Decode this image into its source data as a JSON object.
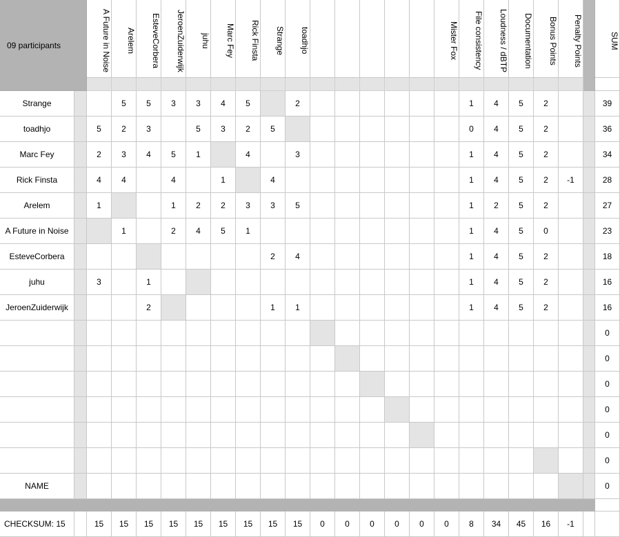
{
  "header": {
    "participants_label": "09 participants",
    "columns": [
      "A Future in Noise",
      "Arelem",
      "EsteveCorbera",
      "JeroenZuiderwijk",
      "juhu",
      "Marc Fey",
      "Rick Finsta",
      "Strange",
      "toadhjo",
      "",
      "",
      "",
      "",
      "",
      "Mister Fox",
      "File consistency",
      "Loudness / dBTP",
      "Documentation",
      "Bonus Points",
      "Penalty Points"
    ],
    "sum_label": "SUM"
  },
  "rows": [
    {
      "name": "Strange",
      "cells": [
        "",
        "5",
        "5",
        "3",
        "3",
        "4",
        "5",
        "",
        "2",
        "",
        "",
        "",
        "",
        "",
        "",
        "1",
        "4",
        "5",
        "2",
        ""
      ],
      "sum": "39",
      "diag": 7
    },
    {
      "name": "toadhjo",
      "cells": [
        "5",
        "2",
        "3",
        "",
        "5",
        "3",
        "2",
        "5",
        "",
        "",
        "",
        "",
        "",
        "",
        "",
        "0",
        "4",
        "5",
        "2",
        ""
      ],
      "sum": "36",
      "diag": 8
    },
    {
      "name": "Marc Fey",
      "cells": [
        "2",
        "3",
        "4",
        "5",
        "1",
        "",
        "4",
        "",
        "3",
        "",
        "",
        "",
        "",
        "",
        "",
        "1",
        "4",
        "5",
        "2",
        ""
      ],
      "sum": "34",
      "diag": 5
    },
    {
      "name": "Rick Finsta",
      "cells": [
        "4",
        "4",
        "",
        "4",
        "",
        "1",
        "",
        "4",
        "",
        "",
        "",
        "",
        "",
        "",
        "",
        "1",
        "4",
        "5",
        "2",
        "-1"
      ],
      "sum": "28",
      "diag": 6
    },
    {
      "name": "Arelem",
      "cells": [
        "1",
        "",
        "",
        "1",
        "2",
        "2",
        "3",
        "3",
        "5",
        "",
        "",
        "",
        "",
        "",
        "",
        "1",
        "2",
        "5",
        "2",
        ""
      ],
      "sum": "27",
      "diag": 1
    },
    {
      "name": "A Future in Noise",
      "cells": [
        "",
        "1",
        "",
        "2",
        "4",
        "5",
        "1",
        "",
        "",
        "",
        "",
        "",
        "",
        "",
        "",
        "1",
        "4",
        "5",
        "0",
        ""
      ],
      "sum": "23",
      "diag": 0
    },
    {
      "name": "EsteveCorbera",
      "cells": [
        "",
        "",
        "",
        "",
        "",
        "",
        "",
        "2",
        "4",
        "",
        "",
        "",
        "",
        "",
        "",
        "1",
        "4",
        "5",
        "2",
        ""
      ],
      "sum": "18",
      "diag": 2
    },
    {
      "name": "juhu",
      "cells": [
        "3",
        "",
        "1",
        "",
        "",
        "",
        "",
        "",
        "",
        "",
        "",
        "",
        "",
        "",
        "",
        "1",
        "4",
        "5",
        "2",
        ""
      ],
      "sum": "16",
      "diag": 4
    },
    {
      "name": "JeroenZuiderwijk",
      "cells": [
        "",
        "",
        "2",
        "",
        "",
        "",
        "",
        "1",
        "1",
        "",
        "",
        "",
        "",
        "",
        "",
        "1",
        "4",
        "5",
        "2",
        ""
      ],
      "sum": "16",
      "diag": 3
    },
    {
      "name": "",
      "cells": [
        "",
        "",
        "",
        "",
        "",
        "",
        "",
        "",
        "",
        "",
        "",
        "",
        "",
        "",
        "",
        "",
        "",
        "",
        "",
        ""
      ],
      "sum": "0",
      "diag": 9
    },
    {
      "name": "",
      "cells": [
        "",
        "",
        "",
        "",
        "",
        "",
        "",
        "",
        "",
        "",
        "",
        "",
        "",
        "",
        "",
        "",
        "",
        "",
        "",
        ""
      ],
      "sum": "0",
      "diag": 10
    },
    {
      "name": "",
      "cells": [
        "",
        "",
        "",
        "",
        "",
        "",
        "",
        "",
        "",
        "",
        "",
        "",
        "",
        "",
        "",
        "",
        "",
        "",
        "",
        ""
      ],
      "sum": "0",
      "diag": 11
    },
    {
      "name": "",
      "cells": [
        "",
        "",
        "",
        "",
        "",
        "",
        "",
        "",
        "",
        "",
        "",
        "",
        "",
        "",
        "",
        "",
        "",
        "",
        "",
        ""
      ],
      "sum": "0",
      "diag": 12
    },
    {
      "name": "",
      "cells": [
        "",
        "",
        "",
        "",
        "",
        "",
        "",
        "",
        "",
        "",
        "",
        "",
        "",
        "",
        "",
        "",
        "",
        "",
        "",
        ""
      ],
      "sum": "0",
      "diag": 13
    },
    {
      "name": "",
      "cells": [
        "",
        "",
        "",
        "",
        "",
        "",
        "",
        "",
        "",
        "",
        "",
        "",
        "",
        "",
        "",
        "",
        "",
        "",
        "",
        ""
      ],
      "sum": "0",
      "diag": 18
    },
    {
      "name": "NAME",
      "cells": [
        "",
        "",
        "",
        "",
        "",
        "",
        "",
        "",
        "",
        "",
        "",
        "",
        "",
        "",
        "",
        "",
        "",
        "",
        "",
        ""
      ],
      "sum": "0",
      "diag": 19
    }
  ],
  "checksum": {
    "label": "CHECKSUM: 15",
    "cells": [
      "15",
      "15",
      "15",
      "15",
      "15",
      "15",
      "15",
      "15",
      "15",
      "0",
      "0",
      "0",
      "0",
      "0",
      "0",
      "8",
      "34",
      "45",
      "16",
      "-1"
    ]
  },
  "colors": {
    "header_gray": "#b3b3b3",
    "light_gray": "#e4e4e4",
    "grid": "#c8c8c8"
  }
}
